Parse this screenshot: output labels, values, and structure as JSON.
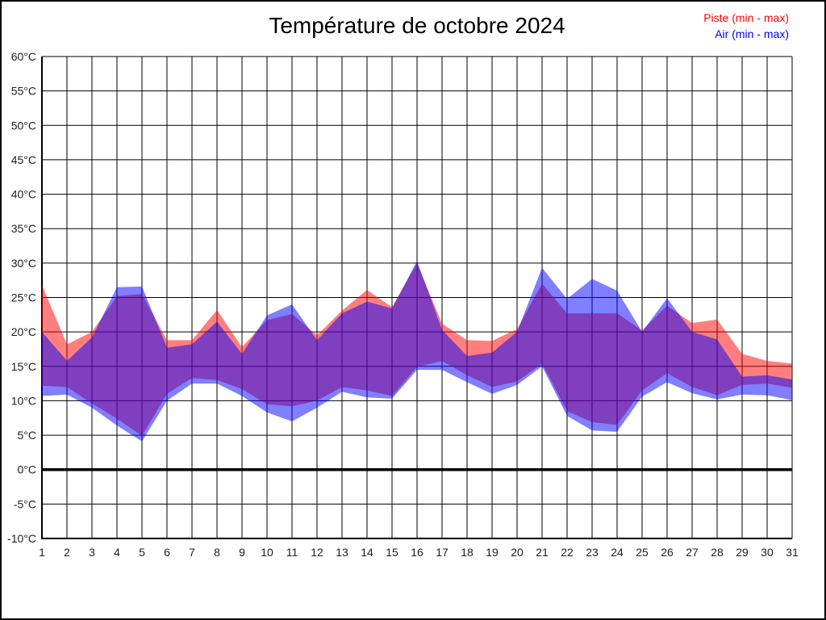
{
  "window": {
    "background": "#FFFFFF",
    "border_color": "#000000"
  },
  "title": "Température de octobre 2024",
  "legend": {
    "piste": {
      "label": "Piste (min - max)",
      "color": "#FF0000"
    },
    "air": {
      "label": "Air (min - max)",
      "color": "#0000FF"
    }
  },
  "chart_data": {
    "type": "area",
    "title": "Température de octobre 2024",
    "x": [
      1,
      2,
      3,
      4,
      5,
      6,
      7,
      8,
      9,
      10,
      11,
      12,
      13,
      14,
      15,
      16,
      17,
      18,
      19,
      20,
      21,
      22,
      23,
      24,
      25,
      26,
      27,
      28,
      29,
      30,
      31
    ],
    "xtick_labels": [
      "1",
      "2",
      "3",
      "4",
      "5",
      "6",
      "7",
      "8",
      "9",
      "10",
      "11",
      "12",
      "13",
      "14",
      "15",
      "16",
      "17",
      "18",
      "19",
      "20",
      "21",
      "22",
      "23",
      "24",
      "25",
      "26",
      "27",
      "28",
      "29",
      "30",
      "31"
    ],
    "ylim": [
      -10,
      60
    ],
    "ytick_step": 5,
    "ytick_labels": [
      "-10°C",
      "-5°C",
      "0°C",
      "5°C",
      "10°C",
      "15°C",
      "20°C",
      "25°C",
      "30°C",
      "35°C",
      "40°C",
      "45°C",
      "50°C",
      "55°C",
      "60°C"
    ],
    "grid": true,
    "grid_color": "#000000",
    "zero_line_value": 0,
    "series": [
      {
        "name": "Piste (min - max)",
        "color": "#FF0000",
        "fill_opacity": 0.5,
        "max": [
          26.8,
          18.2,
          20.0,
          25.2,
          25.5,
          18.8,
          18.8,
          23.2,
          17.8,
          21.7,
          22.6,
          19.5,
          23.1,
          26.1,
          23.6,
          30.0,
          21.2,
          18.8,
          18.7,
          20.4,
          27.0,
          22.7,
          22.7,
          22.7,
          20.2,
          23.8,
          21.3,
          21.8,
          16.8,
          15.8,
          15.4
        ],
        "min": [
          12.2,
          12.0,
          9.6,
          7.4,
          4.9,
          11.0,
          13.3,
          13.0,
          11.7,
          9.5,
          9.2,
          10.0,
          12.0,
          11.5,
          10.7,
          14.9,
          15.8,
          13.7,
          12.0,
          12.8,
          15.4,
          8.5,
          6.9,
          6.5,
          11.5,
          14.0,
          12.0,
          10.8,
          12.3,
          12.5,
          11.9
        ]
      },
      {
        "name": "Air (min - max)",
        "color": "#0000FF",
        "fill_opacity": 0.5,
        "max": [
          20.0,
          15.8,
          19.2,
          26.5,
          26.6,
          17.7,
          18.2,
          21.5,
          16.8,
          22.4,
          24.0,
          18.8,
          22.7,
          24.4,
          23.4,
          30.3,
          20.3,
          16.5,
          17.0,
          20.0,
          29.3,
          24.8,
          27.7,
          26.0,
          20.0,
          24.9,
          20.0,
          18.9,
          13.5,
          13.7,
          13.1
        ],
        "min": [
          10.7,
          10.9,
          9.0,
          6.4,
          4.1,
          10.0,
          12.5,
          12.5,
          10.7,
          8.3,
          7.0,
          9.0,
          11.3,
          10.5,
          10.3,
          14.5,
          14.5,
          12.7,
          11.0,
          12.3,
          15.0,
          7.8,
          5.7,
          5.5,
          10.6,
          12.7,
          11.1,
          10.2,
          10.9,
          10.8,
          10.1
        ]
      }
    ]
  }
}
